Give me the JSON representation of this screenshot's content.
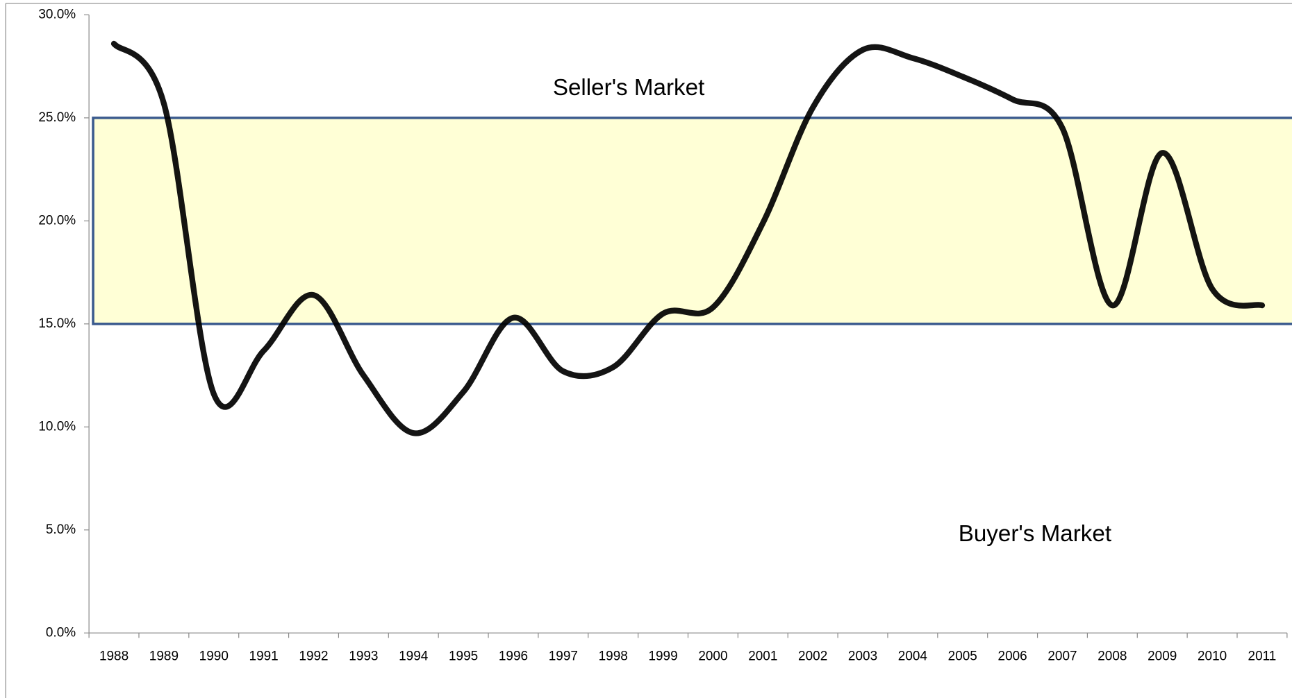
{
  "chart_data": {
    "type": "line",
    "categories": [
      "1988",
      "1989",
      "1990",
      "1991",
      "1992",
      "1993",
      "1994",
      "1995",
      "1996",
      "1997",
      "1998",
      "1999",
      "2000",
      "2001",
      "2002",
      "2003",
      "2004",
      "2005",
      "2006",
      "2007",
      "2008",
      "2009",
      "2010",
      "2011"
    ],
    "values": [
      28.6,
      25.7,
      11.6,
      13.7,
      16.4,
      12.5,
      9.7,
      11.7,
      15.3,
      12.7,
      12.9,
      15.5,
      15.8,
      19.9,
      25.5,
      28.3,
      27.9,
      27.0,
      25.9,
      24.5,
      15.9,
      23.3,
      16.7,
      15.9
    ],
    "color": "#000000",
    "ylim": [
      0,
      30
    ],
    "yticks": [
      {
        "value": 0,
        "label": "0.0%"
      },
      {
        "value": 5,
        "label": "5.0%"
      },
      {
        "value": 10,
        "label": "10.0%"
      },
      {
        "value": 15,
        "label": "15.0%"
      },
      {
        "value": 20,
        "label": "20.0%"
      },
      {
        "value": 25,
        "label": "25.0%"
      },
      {
        "value": 30,
        "label": "30.0%"
      }
    ],
    "band": {
      "from": 15,
      "to": 25,
      "color": "#ffffd6",
      "edge": "#3b5b8e"
    },
    "annotations": [
      "Seller's Market",
      "Buyer's Market"
    ]
  }
}
